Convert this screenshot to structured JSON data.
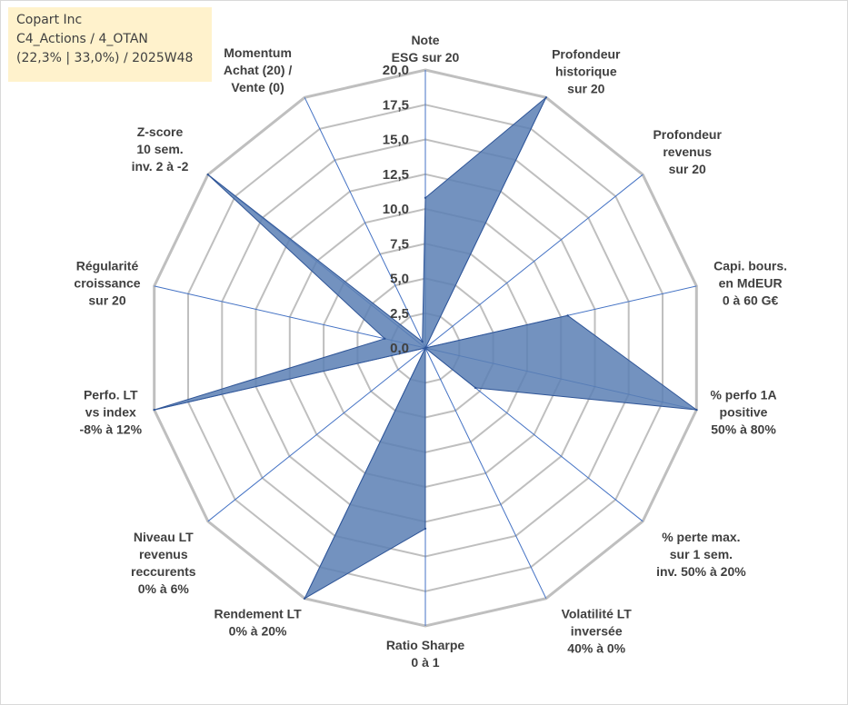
{
  "info": {
    "line1": "Copart Inc",
    "line2": "C4_Actions / 4_OTAN",
    "line3": "(22,3% | 33,0%) / 2025W48"
  },
  "colors": {
    "fill": "#5b7fb4",
    "stroke": "#2f5597",
    "grid": "#bfbfbf",
    "spoke": "#4472c4",
    "text": "#404040",
    "box": "#fff2cc"
  },
  "chart_data": {
    "type": "radar",
    "rmin": 0,
    "rmax": 20,
    "ticks": [
      "0,0",
      "2,5",
      "5,0",
      "7,5",
      "10,0",
      "12,5",
      "15,0",
      "17,5",
      "20,0"
    ],
    "tick_values": [
      0,
      2.5,
      5,
      7.5,
      10,
      12.5,
      15,
      17.5,
      20
    ],
    "grid": true,
    "axes": [
      {
        "lines": [
          "Note",
          "ESG sur 20"
        ],
        "value": 10.8
      },
      {
        "lines": [
          "Profondeur",
          "historique",
          "sur 20"
        ],
        "value": 20
      },
      {
        "lines": [
          "Profondeur",
          "revenus",
          "sur 20"
        ],
        "value": 0
      },
      {
        "lines": [
          "Capi. bours.",
          "en MdEUR",
          "0 à 60 G€"
        ],
        "value": 10.5
      },
      {
        "lines": [
          "% perfo 1A",
          "positive",
          "50% à 80%"
        ],
        "value": 20
      },
      {
        "lines": [
          "% perte max.",
          "sur 1 sem.",
          "inv. 50% à 20%"
        ],
        "value": 4.6
      },
      {
        "lines": [
          "Volatilité LT",
          "inversée",
          "40% à 0%"
        ],
        "value": 0
      },
      {
        "lines": [
          "Ratio Sharpe",
          "0 à 1"
        ],
        "value": 13
      },
      {
        "lines": [
          "Rendement LT",
          "0% à 20%"
        ],
        "value": 20
      },
      {
        "lines": [
          "Niveau LT",
          "revenus",
          "reccurents",
          "0% à 6%"
        ],
        "value": 0
      },
      {
        "lines": [
          "Perfo. LT",
          "vs index",
          "-8% à 12%"
        ],
        "value": 20
      },
      {
        "lines": [
          "Régularité",
          "croissance",
          "sur 20"
        ],
        "value": 3
      },
      {
        "lines": [
          "Z-score",
          "10 sem.",
          "inv. 2 à -2"
        ],
        "value": 20
      },
      {
        "lines": [
          "Momentum",
          "Achat (20) /",
          "Vente (0)"
        ],
        "value": 0.5
      }
    ]
  }
}
